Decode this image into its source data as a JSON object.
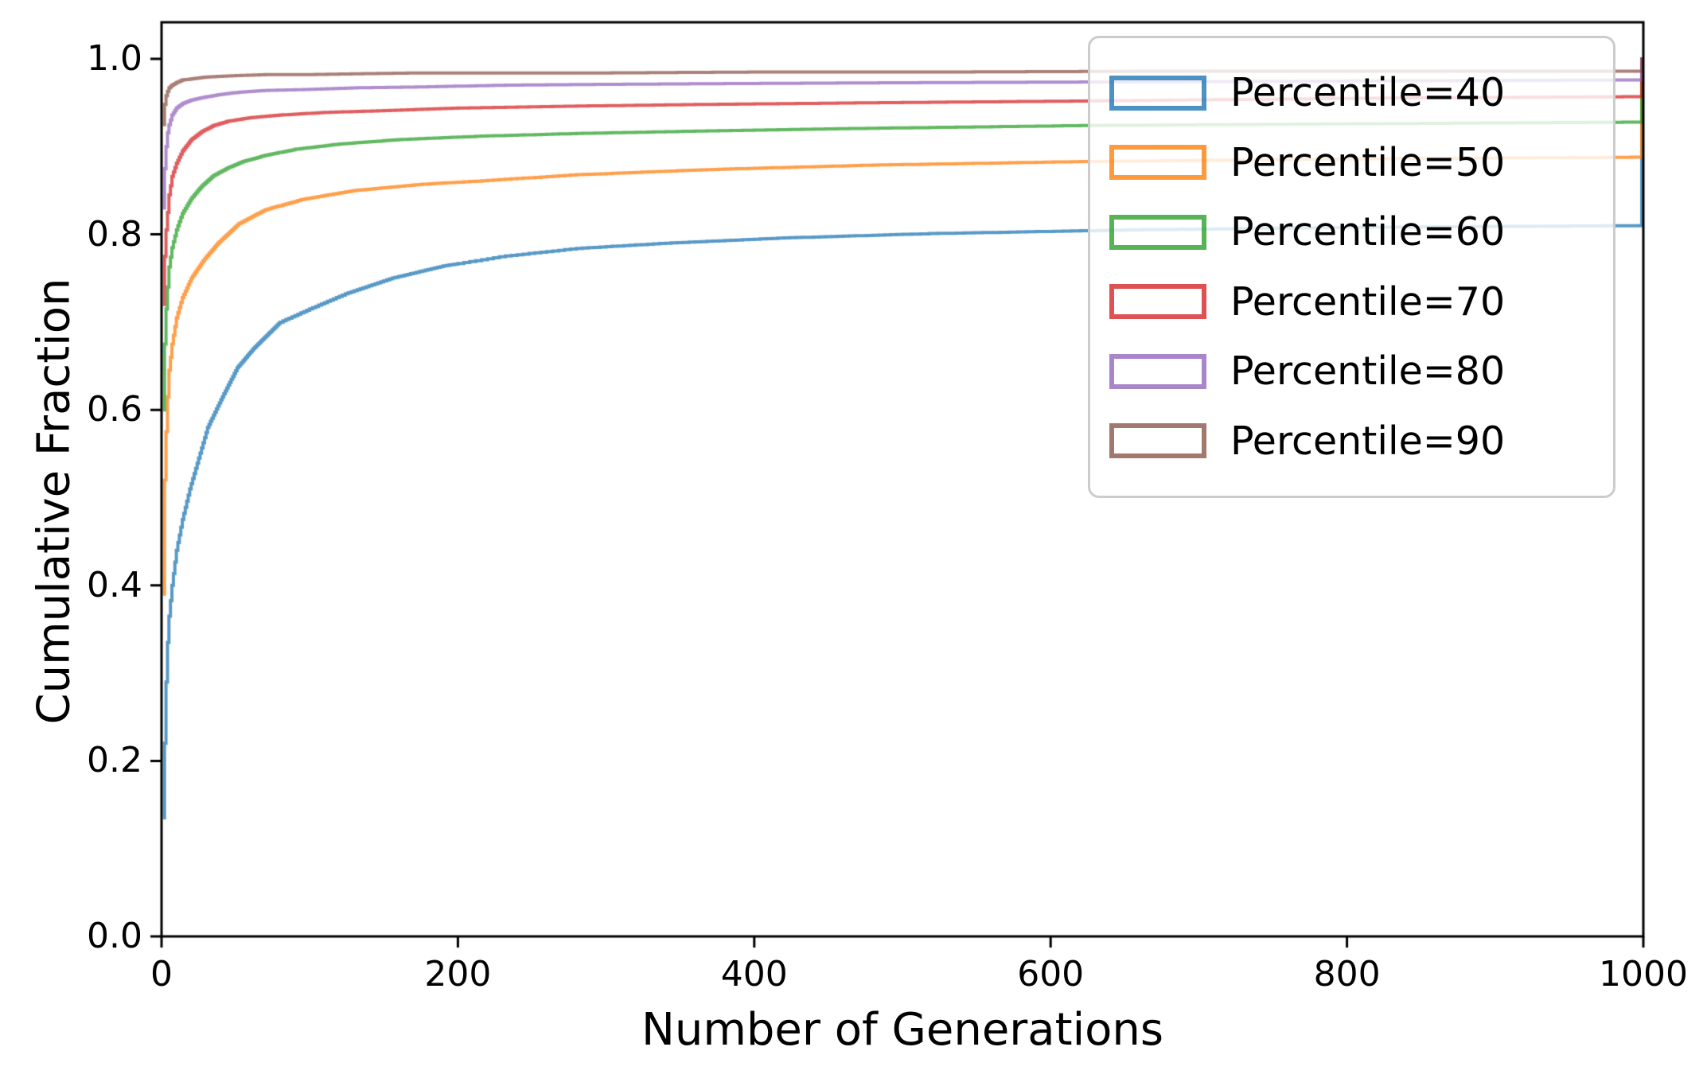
{
  "chart_data": {
    "type": "line",
    "subtype": "cumulative-step-cdf",
    "title": "",
    "xlabel": "Number of Generations",
    "ylabel": "Cumulative Fraction",
    "xlim": [
      0,
      1000
    ],
    "ylim": [
      0,
      1.04
    ],
    "xticks": [
      "0",
      "200",
      "400",
      "600",
      "800",
      "1000"
    ],
    "xtick_values": [
      0,
      200,
      400,
      600,
      800,
      1000
    ],
    "yticks": [
      "0.0",
      "0.2",
      "0.4",
      "0.6",
      "0.8",
      "1.0"
    ],
    "ytick_values": [
      0,
      0.2,
      0.4,
      0.6,
      0.8,
      1.0
    ],
    "grid": false,
    "line_alpha": 0.75,
    "line_width": 4,
    "final_jump_x": 1000,
    "final_jump_y": 1.0,
    "legend": {
      "position": "upper right",
      "frame_color": "#cccccc",
      "background": "rgba(255,255,255,0.8)"
    },
    "series": [
      {
        "name": "Percentile=40",
        "color": "#1f77b4",
        "points": [
          [
            1,
            0.135
          ],
          [
            2,
            0.22
          ],
          [
            3,
            0.29
          ],
          [
            4,
            0.335
          ],
          [
            5,
            0.365
          ],
          [
            7,
            0.4
          ],
          [
            10,
            0.44
          ],
          [
            14,
            0.475
          ],
          [
            19,
            0.51
          ],
          [
            25,
            0.545
          ],
          [
            31,
            0.58
          ],
          [
            41,
            0.615
          ],
          [
            51,
            0.648
          ],
          [
            62,
            0.67
          ],
          [
            80,
            0.7
          ],
          [
            100,
            0.715
          ],
          [
            125,
            0.733
          ],
          [
            155,
            0.75
          ],
          [
            190,
            0.764
          ],
          [
            230,
            0.775
          ],
          [
            280,
            0.784
          ],
          [
            340,
            0.79
          ],
          [
            420,
            0.796
          ],
          [
            520,
            0.801
          ],
          [
            650,
            0.805
          ],
          [
            800,
            0.808
          ],
          [
            999,
            0.81
          ]
        ]
      },
      {
        "name": "Percentile=50",
        "color": "#ff7f0e",
        "points": [
          [
            1,
            0.39
          ],
          [
            2,
            0.52
          ],
          [
            3,
            0.575
          ],
          [
            4,
            0.615
          ],
          [
            5,
            0.645
          ],
          [
            7,
            0.675
          ],
          [
            10,
            0.705
          ],
          [
            14,
            0.728
          ],
          [
            20,
            0.75
          ],
          [
            28,
            0.77
          ],
          [
            38,
            0.79
          ],
          [
            52,
            0.812
          ],
          [
            70,
            0.828
          ],
          [
            95,
            0.84
          ],
          [
            130,
            0.85
          ],
          [
            175,
            0.857
          ],
          [
            215,
            0.861
          ],
          [
            280,
            0.868
          ],
          [
            370,
            0.874
          ],
          [
            480,
            0.879
          ],
          [
            620,
            0.883
          ],
          [
            800,
            0.886
          ],
          [
            999,
            0.888
          ]
        ]
      },
      {
        "name": "Percentile=60",
        "color": "#2ca02c",
        "points": [
          [
            1,
            0.6
          ],
          [
            2,
            0.675
          ],
          [
            3,
            0.715
          ],
          [
            4,
            0.74
          ],
          [
            5,
            0.763
          ],
          [
            7,
            0.785
          ],
          [
            10,
            0.805
          ],
          [
            14,
            0.824
          ],
          [
            20,
            0.841
          ],
          [
            27,
            0.855
          ],
          [
            35,
            0.867
          ],
          [
            45,
            0.876
          ],
          [
            55,
            0.883
          ],
          [
            70,
            0.89
          ],
          [
            90,
            0.897
          ],
          [
            120,
            0.903
          ],
          [
            160,
            0.908
          ],
          [
            215,
            0.912
          ],
          [
            280,
            0.915
          ],
          [
            370,
            0.918
          ],
          [
            480,
            0.921
          ],
          [
            620,
            0.924
          ],
          [
            800,
            0.926
          ],
          [
            999,
            0.928
          ]
        ]
      },
      {
        "name": "Percentile=70",
        "color": "#d62728",
        "points": [
          [
            1,
            0.72
          ],
          [
            2,
            0.775
          ],
          [
            3,
            0.805
          ],
          [
            4,
            0.825
          ],
          [
            5,
            0.845
          ],
          [
            7,
            0.866
          ],
          [
            10,
            0.881
          ],
          [
            14,
            0.895
          ],
          [
            20,
            0.908
          ],
          [
            27,
            0.917
          ],
          [
            35,
            0.924
          ],
          [
            45,
            0.929
          ],
          [
            60,
            0.933
          ],
          [
            80,
            0.936
          ],
          [
            110,
            0.939
          ],
          [
            150,
            0.941
          ],
          [
            200,
            0.944
          ],
          [
            270,
            0.946
          ],
          [
            360,
            0.948
          ],
          [
            480,
            0.95
          ],
          [
            620,
            0.952
          ],
          [
            800,
            0.955
          ],
          [
            999,
            0.957
          ]
        ]
      },
      {
        "name": "Percentile=80",
        "color": "#9467bd",
        "points": [
          [
            1,
            0.83
          ],
          [
            2,
            0.875
          ],
          [
            3,
            0.9
          ],
          [
            4,
            0.916
          ],
          [
            5,
            0.925
          ],
          [
            7,
            0.936
          ],
          [
            10,
            0.944
          ],
          [
            14,
            0.949
          ],
          [
            20,
            0.953
          ],
          [
            28,
            0.956
          ],
          [
            38,
            0.959
          ],
          [
            52,
            0.962
          ],
          [
            70,
            0.964
          ],
          [
            95,
            0.965
          ],
          [
            130,
            0.967
          ],
          [
            175,
            0.968
          ],
          [
            230,
            0.97
          ],
          [
            300,
            0.971
          ],
          [
            400,
            0.972
          ],
          [
            520,
            0.973
          ],
          [
            680,
            0.974
          ],
          [
            999,
            0.976
          ]
        ]
      },
      {
        "name": "Percentile=90",
        "color": "#8c564b",
        "points": [
          [
            1,
            0.925
          ],
          [
            2,
            0.948
          ],
          [
            3,
            0.958
          ],
          [
            4,
            0.963
          ],
          [
            5,
            0.967
          ],
          [
            7,
            0.97
          ],
          [
            10,
            0.973
          ],
          [
            14,
            0.976
          ],
          [
            20,
            0.977
          ],
          [
            28,
            0.979
          ],
          [
            38,
            0.98
          ],
          [
            52,
            0.981
          ],
          [
            70,
            0.982
          ],
          [
            95,
            0.982
          ],
          [
            130,
            0.983
          ],
          [
            175,
            0.984
          ],
          [
            230,
            0.984
          ],
          [
            300,
            0.984
          ],
          [
            400,
            0.985
          ],
          [
            520,
            0.985
          ],
          [
            680,
            0.986
          ],
          [
            999,
            0.986
          ]
        ]
      }
    ]
  }
}
